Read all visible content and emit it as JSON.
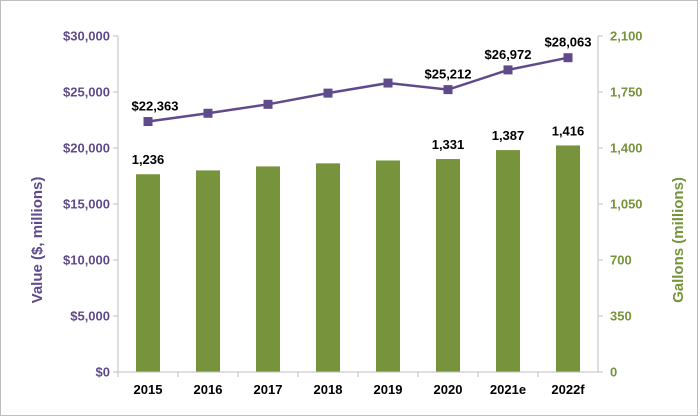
{
  "chart_data": {
    "type": "bar+line",
    "categories": [
      "2015",
      "2016",
      "2017",
      "2018",
      "2019",
      "2020",
      "2021e",
      "2022f"
    ],
    "series": [
      {
        "type": "bar",
        "axis": "right",
        "values": [
          1236,
          1260,
          1285,
          1304,
          1322,
          1331,
          1387,
          1416
        ],
        "labels": [
          "1,236",
          "",
          "",
          "",
          "",
          "1,331",
          "1,387",
          "1,416"
        ],
        "color": "#77933c"
      },
      {
        "type": "line",
        "axis": "left",
        "values": [
          22363,
          23100,
          23900,
          24900,
          25800,
          25212,
          26972,
          28063
        ],
        "labels": [
          "$22,363",
          "",
          "",
          "",
          "",
          "$25,212",
          "$26,972",
          "$28,063"
        ],
        "color": "#5f4b8b"
      }
    ],
    "y_left": {
      "label": "Value ($, millions)",
      "range": [
        0,
        30000
      ],
      "ticks": [
        "$0",
        "$5,000",
        "$10,000",
        "$15,000",
        "$20,000",
        "$25,000",
        "$30,000"
      ],
      "color": "#5f4b8b"
    },
    "y_right": {
      "label": "Gallons (millions)",
      "range": [
        0,
        2100
      ],
      "ticks": [
        "0",
        "350",
        "700",
        "1,050",
        "1,400",
        "1,750",
        "2,100"
      ],
      "color": "#77933c"
    },
    "grid": false,
    "legend": "none"
  }
}
